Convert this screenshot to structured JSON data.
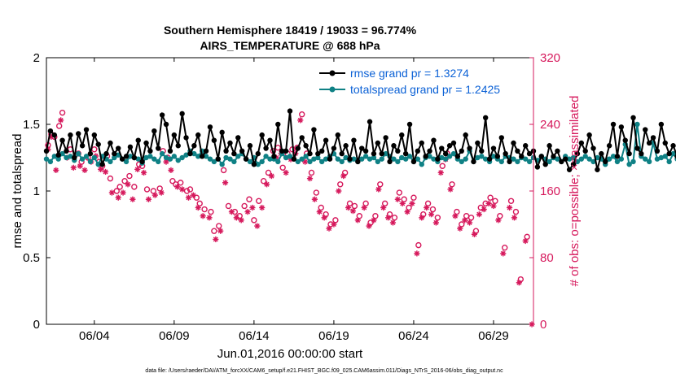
{
  "chart_data": {
    "type": "line",
    "title_line1": "Southern Hemisphere 18419 / 19033 = 96.774%",
    "title_line2": "AIRS_TEMPERATURE @ 688 hPa",
    "xlabel": "Jun.01,2016 00:00:00 start",
    "ylabel_left": "rmse and totalspread",
    "ylabel_right": "# of obs: o=possible; ×=assimilated",
    "xlim": [
      0,
      30.5
    ],
    "ylim_left": [
      0,
      2
    ],
    "ylim_right": [
      0,
      320
    ],
    "x_ticks": [
      {
        "value": 3,
        "label": "06/04"
      },
      {
        "value": 8,
        "label": "06/09"
      },
      {
        "value": 13,
        "label": "06/14"
      },
      {
        "value": 18,
        "label": "06/19"
      },
      {
        "value": 23,
        "label": "06/24"
      },
      {
        "value": 28,
        "label": "06/29"
      }
    ],
    "y_ticks_left": [
      {
        "value": 0,
        "label": "0"
      },
      {
        "value": 0.5,
        "label": "0.5"
      },
      {
        "value": 1,
        "label": "1"
      },
      {
        "value": 1.5,
        "label": "1.5"
      },
      {
        "value": 2,
        "label": "2"
      }
    ],
    "y_ticks_right": [
      {
        "value": 0,
        "label": "0"
      },
      {
        "value": 80,
        "label": "80"
      },
      {
        "value": 160,
        "label": "160"
      },
      {
        "value": 240,
        "label": "240"
      },
      {
        "value": 320,
        "label": "320"
      }
    ],
    "x_step": 0.25,
    "series": [
      {
        "name": "rmse",
        "legend": "rmse grand pr = 1.3274",
        "color": "#000000",
        "values": [
          1.3,
          1.45,
          1.42,
          1.27,
          1.38,
          1.3,
          1.42,
          1.25,
          1.43,
          1.34,
          1.46,
          1.28,
          1.42,
          1.35,
          1.2,
          1.28,
          1.36,
          1.28,
          1.32,
          1.24,
          1.26,
          1.33,
          1.25,
          1.38,
          1.22,
          1.36,
          1.3,
          1.45,
          1.32,
          1.57,
          1.5,
          1.3,
          1.42,
          1.34,
          1.58,
          1.4,
          1.28,
          1.34,
          1.42,
          1.26,
          1.3,
          1.48,
          1.38,
          1.24,
          1.44,
          1.3,
          1.36,
          1.28,
          1.4,
          1.3,
          1.24,
          1.34,
          1.2,
          1.28,
          1.42,
          1.32,
          1.38,
          1.26,
          1.5,
          1.3,
          1.3,
          1.6,
          1.24,
          1.32,
          1.4,
          1.34,
          1.28,
          1.46,
          1.28,
          1.3,
          1.38,
          1.24,
          1.32,
          1.42,
          1.28,
          1.34,
          1.24,
          1.38,
          1.22,
          1.32,
          1.3,
          1.52,
          1.28,
          1.36,
          1.28,
          1.4,
          1.22,
          1.34,
          1.3,
          1.42,
          1.28,
          1.5,
          1.22,
          1.3,
          1.36,
          1.26,
          1.3,
          1.38,
          1.24,
          1.32,
          1.28,
          1.34,
          1.36,
          1.26,
          1.3,
          1.42,
          1.32,
          1.22,
          1.36,
          1.3,
          1.55,
          1.24,
          1.32,
          1.26,
          1.4,
          1.28,
          1.22,
          1.36,
          1.3,
          1.26,
          1.34,
          1.28,
          1.3,
          1.18,
          1.26,
          1.2,
          1.34,
          1.26,
          1.3,
          1.22,
          1.24,
          1.16,
          1.2,
          1.28,
          1.36,
          1.3,
          1.42,
          1.32,
          1.16,
          1.28,
          1.22,
          1.34,
          1.5,
          1.26,
          1.48,
          1.38,
          1.28,
          1.55,
          1.32,
          1.28,
          1.46,
          1.36,
          1.4,
          1.3,
          1.5,
          1.36,
          1.28,
          1.34,
          1.26,
          1.3,
          1.28,
          1.32,
          1.24,
          1.3,
          1.28,
          1.26,
          1.3,
          1.34,
          1.04,
          1.24,
          1.14,
          1.28,
          1.22,
          1.28
        ]
      },
      {
        "name": "totalspread",
        "legend": "totalspread grand pr = 1.2425",
        "color": "#0f8185",
        "values": [
          1.24,
          1.22,
          1.26,
          1.24,
          1.28,
          1.25,
          1.26,
          1.23,
          1.28,
          1.24,
          1.26,
          1.22,
          1.25,
          1.2,
          1.26,
          1.24,
          1.22,
          1.25,
          1.27,
          1.24,
          1.22,
          1.26,
          1.25,
          1.24,
          1.21,
          1.25,
          1.26,
          1.24,
          1.22,
          1.28,
          1.25,
          1.24,
          1.26,
          1.23,
          1.25,
          1.27,
          1.3,
          1.28,
          1.26,
          1.3,
          1.26,
          1.24,
          1.22,
          1.24,
          1.2,
          1.25,
          1.24,
          1.22,
          1.26,
          1.28,
          1.24,
          1.22,
          1.25,
          1.2,
          1.22,
          1.26,
          1.24,
          1.24,
          1.22,
          1.28,
          1.25,
          1.26,
          1.24,
          1.22,
          1.24,
          1.26,
          1.22,
          1.24,
          1.25,
          1.22,
          1.24,
          1.26,
          1.28,
          1.24,
          1.22,
          1.25,
          1.23,
          1.24,
          1.22,
          1.24,
          1.26,
          1.24,
          1.25,
          1.22,
          1.24,
          1.28,
          1.26,
          1.24,
          1.22,
          1.25,
          1.24,
          1.26,
          1.22,
          1.24,
          1.2,
          1.25,
          1.26,
          1.24,
          1.22,
          1.25,
          1.24,
          1.26,
          1.28,
          1.24,
          1.22,
          1.24,
          1.3,
          1.22,
          1.25,
          1.26,
          1.24,
          1.22,
          1.26,
          1.24,
          1.22,
          1.26,
          1.25,
          1.24,
          1.22,
          1.25,
          1.24,
          1.22,
          1.25,
          1.23,
          1.26,
          1.24,
          1.22,
          1.25,
          1.24,
          1.22,
          1.26,
          1.24,
          1.25,
          1.22,
          1.24,
          1.26,
          1.24,
          1.22,
          1.25,
          1.24,
          1.2,
          1.24,
          1.26,
          1.22,
          1.24,
          1.35,
          1.2,
          1.22,
          1.5,
          1.26,
          1.24,
          1.22,
          1.36,
          1.24,
          1.25,
          1.26,
          1.22,
          1.28,
          1.24,
          1.25,
          1.26,
          1.22,
          1.24,
          1.24,
          1.26,
          1.24,
          1.22,
          1.25,
          1.24,
          1.26,
          1.22,
          1.2,
          1.26,
          1.24,
          1.22,
          1.26
        ]
      }
    ],
    "obs_possible": [
      {
        "x": 0.1,
        "v": 215
      },
      {
        "x": 0.3,
        "v": 228
      },
      {
        "x": 0.5,
        "v": 225
      },
      {
        "x": 0.8,
        "v": 238
      },
      {
        "x": 1.0,
        "v": 254
      },
      {
        "x": 1.5,
        "v": 210
      },
      {
        "x": 2.0,
        "v": 205
      },
      {
        "x": 2.2,
        "v": 195
      },
      {
        "x": 2.6,
        "v": 200
      },
      {
        "x": 3.0,
        "v": 210
      },
      {
        "x": 3.3,
        "v": 195
      },
      {
        "x": 3.5,
        "v": 190
      },
      {
        "x": 3.8,
        "v": 202
      },
      {
        "x": 4.0,
        "v": 175
      },
      {
        "x": 4.4,
        "v": 160
      },
      {
        "x": 4.6,
        "v": 165
      },
      {
        "x": 4.9,
        "v": 172
      },
      {
        "x": 5.2,
        "v": 178
      },
      {
        "x": 5.5,
        "v": 165
      },
      {
        "x": 5.8,
        "v": 192
      },
      {
        "x": 6.0,
        "v": 190
      },
      {
        "x": 6.3,
        "v": 162
      },
      {
        "x": 6.7,
        "v": 160
      },
      {
        "x": 7.1,
        "v": 163
      },
      {
        "x": 7.3,
        "v": 208
      },
      {
        "x": 7.6,
        "v": 200
      },
      {
        "x": 7.9,
        "v": 172
      },
      {
        "x": 8.1,
        "v": 168
      },
      {
        "x": 8.4,
        "v": 170
      },
      {
        "x": 8.8,
        "v": 160
      },
      {
        "x": 9.0,
        "v": 162
      },
      {
        "x": 9.4,
        "v": 152
      },
      {
        "x": 9.6,
        "v": 145
      },
      {
        "x": 9.9,
        "v": 138
      },
      {
        "x": 10.3,
        "v": 135
      },
      {
        "x": 10.5,
        "v": 112
      },
      {
        "x": 10.8,
        "v": 118
      },
      {
        "x": 11.1,
        "v": 185
      },
      {
        "x": 11.4,
        "v": 142
      },
      {
        "x": 11.8,
        "v": 135
      },
      {
        "x": 12.1,
        "v": 130
      },
      {
        "x": 12.4,
        "v": 142
      },
      {
        "x": 12.7,
        "v": 150
      },
      {
        "x": 13.0,
        "v": 125
      },
      {
        "x": 13.3,
        "v": 148
      },
      {
        "x": 13.6,
        "v": 172
      },
      {
        "x": 13.9,
        "v": 182
      },
      {
        "x": 14.2,
        "v": 208
      },
      {
        "x": 14.5,
        "v": 212
      },
      {
        "x": 14.8,
        "v": 188
      },
      {
        "x": 15.1,
        "v": 205
      },
      {
        "x": 15.4,
        "v": 210
      },
      {
        "x": 15.7,
        "v": 212
      },
      {
        "x": 16.0,
        "v": 252
      },
      {
        "x": 16.3,
        "v": 205
      },
      {
        "x": 16.6,
        "v": 182
      },
      {
        "x": 16.9,
        "v": 158
      },
      {
        "x": 17.2,
        "v": 140
      },
      {
        "x": 17.5,
        "v": 132
      },
      {
        "x": 17.8,
        "v": 120
      },
      {
        "x": 18.1,
        "v": 125
      },
      {
        "x": 18.4,
        "v": 168
      },
      {
        "x": 18.7,
        "v": 182
      },
      {
        "x": 19.0,
        "v": 145
      },
      {
        "x": 19.3,
        "v": 142
      },
      {
        "x": 19.6,
        "v": 130
      },
      {
        "x": 20.0,
        "v": 145
      },
      {
        "x": 20.3,
        "v": 122
      },
      {
        "x": 20.6,
        "v": 130
      },
      {
        "x": 20.9,
        "v": 168
      },
      {
        "x": 21.2,
        "v": 145
      },
      {
        "x": 21.5,
        "v": 132
      },
      {
        "x": 21.8,
        "v": 128
      },
      {
        "x": 22.1,
        "v": 158
      },
      {
        "x": 22.4,
        "v": 150
      },
      {
        "x": 22.7,
        "v": 140
      },
      {
        "x": 23.0,
        "v": 152
      },
      {
        "x": 23.3,
        "v": 95
      },
      {
        "x": 23.6,
        "v": 132
      },
      {
        "x": 23.9,
        "v": 145
      },
      {
        "x": 24.2,
        "v": 138
      },
      {
        "x": 24.5,
        "v": 128
      },
      {
        "x": 24.8,
        "v": 190
      },
      {
        "x": 25.1,
        "v": 205
      },
      {
        "x": 25.4,
        "v": 168
      },
      {
        "x": 25.7,
        "v": 135
      },
      {
        "x": 26.0,
        "v": 120
      },
      {
        "x": 26.3,
        "v": 130
      },
      {
        "x": 26.6,
        "v": 128
      },
      {
        "x": 26.9,
        "v": 112
      },
      {
        "x": 27.2,
        "v": 140
      },
      {
        "x": 27.5,
        "v": 145
      },
      {
        "x": 27.8,
        "v": 152
      },
      {
        "x": 28.1,
        "v": 148
      },
      {
        "x": 28.4,
        "v": 130
      },
      {
        "x": 28.7,
        "v": 92
      },
      {
        "x": 29.1,
        "v": 148
      },
      {
        "x": 29.4,
        "v": 135
      },
      {
        "x": 29.7,
        "v": 54
      },
      {
        "x": 30.1,
        "v": 105
      }
    ],
    "obs_assimilated": [
      {
        "x": 0.1,
        "v": 210
      },
      {
        "x": 0.3,
        "v": 225
      },
      {
        "x": 0.6,
        "v": 185
      },
      {
        "x": 0.9,
        "v": 245
      },
      {
        "x": 1.3,
        "v": 200
      },
      {
        "x": 1.7,
        "v": 188
      },
      {
        "x": 2.1,
        "v": 190
      },
      {
        "x": 2.4,
        "v": 185
      },
      {
        "x": 2.8,
        "v": 195
      },
      {
        "x": 3.1,
        "v": 202
      },
      {
        "x": 3.4,
        "v": 186
      },
      {
        "x": 3.7,
        "v": 183
      },
      {
        "x": 4.1,
        "v": 158
      },
      {
        "x": 4.5,
        "v": 152
      },
      {
        "x": 4.8,
        "v": 158
      },
      {
        "x": 5.1,
        "v": 168
      },
      {
        "x": 5.4,
        "v": 150
      },
      {
        "x": 5.7,
        "v": 186
      },
      {
        "x": 6.1,
        "v": 182
      },
      {
        "x": 6.4,
        "v": 150
      },
      {
        "x": 6.8,
        "v": 155
      },
      {
        "x": 7.2,
        "v": 158
      },
      {
        "x": 7.5,
        "v": 195
      },
      {
        "x": 7.8,
        "v": 185
      },
      {
        "x": 8.2,
        "v": 165
      },
      {
        "x": 8.5,
        "v": 162
      },
      {
        "x": 8.9,
        "v": 152
      },
      {
        "x": 9.2,
        "v": 155
      },
      {
        "x": 9.5,
        "v": 140
      },
      {
        "x": 9.8,
        "v": 130
      },
      {
        "x": 10.2,
        "v": 128
      },
      {
        "x": 10.6,
        "v": 102
      },
      {
        "x": 10.9,
        "v": 112
      },
      {
        "x": 11.2,
        "v": 170
      },
      {
        "x": 11.6,
        "v": 135
      },
      {
        "x": 11.9,
        "v": 128
      },
      {
        "x": 12.2,
        "v": 125
      },
      {
        "x": 12.6,
        "v": 135
      },
      {
        "x": 12.9,
        "v": 140
      },
      {
        "x": 13.2,
        "v": 118
      },
      {
        "x": 13.5,
        "v": 140
      },
      {
        "x": 13.8,
        "v": 168
      },
      {
        "x": 14.1,
        "v": 178
      },
      {
        "x": 14.4,
        "v": 200
      },
      {
        "x": 14.7,
        "v": 205
      },
      {
        "x": 15.0,
        "v": 182
      },
      {
        "x": 15.3,
        "v": 198
      },
      {
        "x": 15.6,
        "v": 205
      },
      {
        "x": 15.9,
        "v": 245
      },
      {
        "x": 16.2,
        "v": 195
      },
      {
        "x": 16.5,
        "v": 175
      },
      {
        "x": 16.8,
        "v": 150
      },
      {
        "x": 17.1,
        "v": 135
      },
      {
        "x": 17.4,
        "v": 128
      },
      {
        "x": 17.7,
        "v": 115
      },
      {
        "x": 18.0,
        "v": 120
      },
      {
        "x": 18.3,
        "v": 160
      },
      {
        "x": 18.6,
        "v": 178
      },
      {
        "x": 18.9,
        "v": 140
      },
      {
        "x": 19.2,
        "v": 136
      },
      {
        "x": 19.5,
        "v": 125
      },
      {
        "x": 19.9,
        "v": 140
      },
      {
        "x": 20.2,
        "v": 118
      },
      {
        "x": 20.5,
        "v": 125
      },
      {
        "x": 20.8,
        "v": 162
      },
      {
        "x": 21.1,
        "v": 140
      },
      {
        "x": 21.4,
        "v": 128
      },
      {
        "x": 21.7,
        "v": 122
      },
      {
        "x": 22.0,
        "v": 150
      },
      {
        "x": 22.3,
        "v": 145
      },
      {
        "x": 22.6,
        "v": 135
      },
      {
        "x": 22.9,
        "v": 145
      },
      {
        "x": 23.2,
        "v": 85
      },
      {
        "x": 23.5,
        "v": 128
      },
      {
        "x": 23.8,
        "v": 140
      },
      {
        "x": 24.1,
        "v": 132
      },
      {
        "x": 24.4,
        "v": 122
      },
      {
        "x": 24.7,
        "v": 182
      },
      {
        "x": 25.0,
        "v": 198
      },
      {
        "x": 25.3,
        "v": 162
      },
      {
        "x": 25.6,
        "v": 130
      },
      {
        "x": 25.9,
        "v": 115
      },
      {
        "x": 26.2,
        "v": 125
      },
      {
        "x": 26.5,
        "v": 122
      },
      {
        "x": 26.8,
        "v": 108
      },
      {
        "x": 27.1,
        "v": 132
      },
      {
        "x": 27.4,
        "v": 138
      },
      {
        "x": 27.7,
        "v": 145
      },
      {
        "x": 28.0,
        "v": 142
      },
      {
        "x": 28.3,
        "v": 125
      },
      {
        "x": 28.6,
        "v": 85
      },
      {
        "x": 29.0,
        "v": 140
      },
      {
        "x": 29.3,
        "v": 128
      },
      {
        "x": 29.6,
        "v": 50
      },
      {
        "x": 30.0,
        "v": 100
      },
      {
        "x": 30.4,
        "v": 0
      }
    ],
    "obs_color": "#d6195c",
    "footer": "data file: /Users/raeder/DAI/ATM_forcXX/CAM6_setup/f.e21.FHIST_BGC.f09_025.CAM6assim.011/Diags_NTrS_2016-06/obs_diag_output.nc"
  }
}
